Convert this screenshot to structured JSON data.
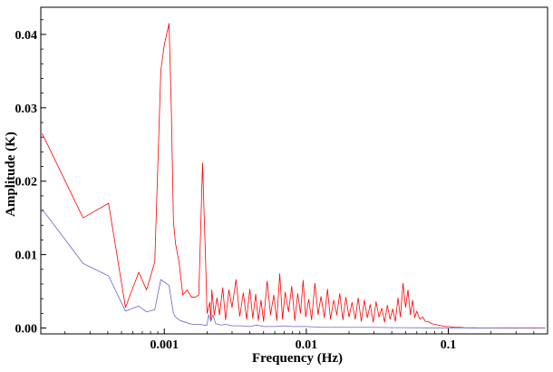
{
  "chart_data": {
    "type": "line",
    "title": "",
    "xlabel": "Frequency (Hz)",
    "ylabel": "Amplitude (K)",
    "xscale": "log",
    "xlim": [
      0.000135,
      0.5
    ],
    "ylim": [
      -0.0008,
      0.0437
    ],
    "xticks": [
      {
        "value": 0.001,
        "label": "0.001"
      },
      {
        "value": 0.01,
        "label": "0.01"
      },
      {
        "value": 0.1,
        "label": "0.1"
      }
    ],
    "yticks": [
      {
        "value": 0.0,
        "label": "0.00"
      },
      {
        "value": 0.01,
        "label": "0.01"
      },
      {
        "value": 0.02,
        "label": "0.02"
      },
      {
        "value": 0.03,
        "label": "0.03"
      },
      {
        "value": 0.04,
        "label": "0.04"
      }
    ],
    "grid": false,
    "legend": "none",
    "series": [
      {
        "color": "#ff0000",
        "x": [
          0.000138,
          0.000268,
          0.000405,
          0.000533,
          0.000661,
          0.00075,
          0.000857,
          0.000945,
          0.001,
          0.00108,
          0.00112,
          0.00116,
          0.0012,
          0.00127,
          0.00135,
          0.00145,
          0.00155,
          0.00165,
          0.00175,
          0.00186,
          0.00196,
          0.002,
          0.00209,
          0.00213,
          0.00216,
          0.00225,
          0.00235,
          0.00245,
          0.00258,
          0.0027,
          0.00285,
          0.003,
          0.0032,
          0.0034,
          0.0036,
          0.0038,
          0.004,
          0.0042,
          0.0044,
          0.0046,
          0.0048,
          0.005,
          0.0053,
          0.0056,
          0.0059,
          0.0062,
          0.0065,
          0.0068,
          0.0071,
          0.0075,
          0.0079,
          0.0083,
          0.0087,
          0.0091,
          0.0095,
          0.0099,
          0.0104,
          0.0109,
          0.0115,
          0.0121,
          0.0127,
          0.0134,
          0.0141,
          0.0148,
          0.0156,
          0.0164,
          0.0172,
          0.0181,
          0.019,
          0.02,
          0.021,
          0.0221,
          0.0232,
          0.0244,
          0.0256,
          0.0269,
          0.0282,
          0.0296,
          0.031,
          0.0325,
          0.034,
          0.0356,
          0.0372,
          0.0389,
          0.0406,
          0.0424,
          0.0442,
          0.046,
          0.048,
          0.05,
          0.052,
          0.054,
          0.056,
          0.058,
          0.06,
          0.063,
          0.066,
          0.069,
          0.072,
          0.076,
          0.08,
          0.085,
          0.09,
          0.095,
          0.1,
          0.11,
          0.12,
          0.13,
          0.15,
          0.17,
          0.2,
          0.25,
          0.3,
          0.4,
          0.48
        ],
        "y": [
          0.0265,
          0.015,
          0.017,
          0.0028,
          0.0076,
          0.0052,
          0.009,
          0.035,
          0.0386,
          0.0415,
          0.03,
          0.0145,
          0.0115,
          0.009,
          0.0045,
          0.0052,
          0.0042,
          0.0042,
          0.0045,
          0.0225,
          0.0082,
          0.002,
          0.0035,
          0.0012,
          0.0052,
          0.0018,
          0.0041,
          0.0018,
          0.0055,
          0.0011,
          0.0052,
          0.0028,
          0.0066,
          0.0016,
          0.0048,
          0.0012,
          0.0053,
          0.0013,
          0.0046,
          0.001,
          0.0038,
          0.0009,
          0.0064,
          0.0018,
          0.0045,
          0.001,
          0.0074,
          0.0012,
          0.0049,
          0.0022,
          0.0057,
          0.001,
          0.0047,
          0.002,
          0.0065,
          0.0015,
          0.0039,
          0.0011,
          0.0061,
          0.0018,
          0.0043,
          0.0014,
          0.0053,
          0.0012,
          0.0038,
          0.0018,
          0.0047,
          0.0011,
          0.0042,
          0.0015,
          0.0035,
          0.0012,
          0.0041,
          0.0009,
          0.0038,
          0.0014,
          0.0032,
          0.0008,
          0.0036,
          0.0015,
          0.0027,
          0.0008,
          0.0031,
          0.0012,
          0.0026,
          0.0009,
          0.0041,
          0.0015,
          0.0061,
          0.0028,
          0.0052,
          0.0018,
          0.0038,
          0.0014,
          0.0023,
          0.0012,
          0.0015,
          0.0009,
          0.0009,
          0.0006,
          0.0005,
          0.0004,
          0.0003,
          0.0002,
          0.0002,
          0.0001,
          0.0001,
          5e-05,
          3e-05,
          2e-05,
          2e-05,
          1e-05,
          1e-05,
          0.0,
          0.0
        ]
      },
      {
        "color": "#6666cc",
        "x": [
          0.000138,
          0.000268,
          0.000405,
          0.000533,
          0.000661,
          0.00075,
          0.000857,
          0.000945,
          0.00108,
          0.00116,
          0.0012,
          0.0013,
          0.0014,
          0.0015,
          0.0016,
          0.0017,
          0.0018,
          0.0019,
          0.002,
          0.00205,
          0.00213,
          0.0022,
          0.0023,
          0.0025,
          0.0027,
          0.003,
          0.0035,
          0.004,
          0.0045,
          0.005,
          0.006,
          0.007,
          0.008,
          0.01,
          0.013,
          0.017,
          0.02,
          0.03,
          0.04,
          0.05,
          0.07,
          0.1,
          0.15,
          0.2,
          0.3,
          0.48
        ],
        "y": [
          0.0162,
          0.0088,
          0.0071,
          0.0023,
          0.003,
          0.0022,
          0.0025,
          0.0066,
          0.0058,
          0.002,
          0.0015,
          0.001,
          0.0008,
          0.0006,
          0.0005,
          0.0005,
          0.0005,
          0.0004,
          0.0004,
          0.0018,
          0.0009,
          0.0018,
          0.0006,
          0.0004,
          0.0005,
          0.0003,
          0.0003,
          0.0002,
          0.0004,
          0.0002,
          0.0002,
          0.0003,
          0.0002,
          0.0002,
          0.0001,
          0.0001,
          0.0001,
          0.0001,
          5e-05,
          5e-05,
          3e-05,
          2e-05,
          1e-05,
          1e-05,
          0.0,
          0.0
        ]
      }
    ]
  }
}
